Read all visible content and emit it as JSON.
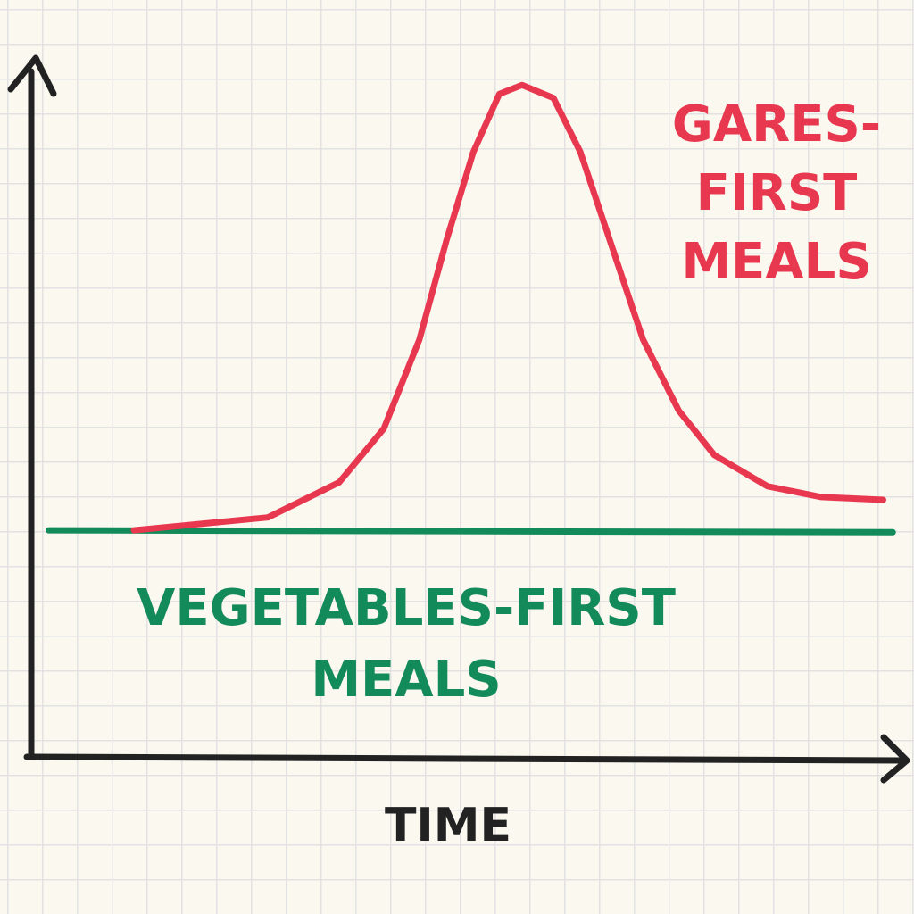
{
  "chart_data": {
    "type": "line",
    "xlabel": "TIME",
    "xlim": [
      0,
      100
    ],
    "ylim": [
      0,
      100
    ],
    "series": [
      {
        "label": [
          "GARES-",
          "FIRST",
          "MEALS"
        ],
        "color": "#e8384f",
        "x": [
          11.8,
          27.2,
          35.4,
          40.5,
          44.6,
          47.7,
          50.8,
          53.8,
          56.4,
          60,
          63.1,
          67.2,
          70.3,
          74.4,
          78.5,
          84.6,
          90.8,
          97.9
        ],
        "values": [
          33.5,
          35.4,
          40.6,
          48.5,
          61.7,
          76.3,
          89.4,
          98,
          99.3,
          97.4,
          89.4,
          73.6,
          61.7,
          51.2,
          44.6,
          40,
          38.4,
          38
        ]
      },
      {
        "label": [
          "VEGETABLES-FIRST",
          "MEALS"
        ],
        "color": "#138a5a",
        "x": [
          2,
          99
        ],
        "values": [
          33.5,
          33.2
        ]
      }
    ]
  }
}
